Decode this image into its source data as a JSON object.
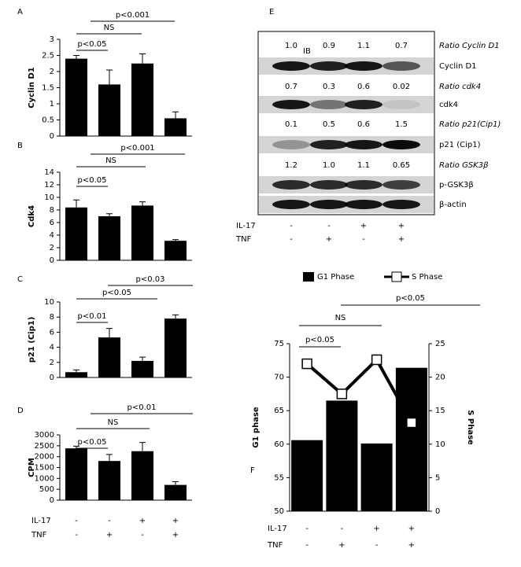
{
  "chart_data": [
    {
      "type": "bar",
      "label": "A",
      "ylabel": "Cyclin D1",
      "color": "#000000",
      "values": [
        2.4,
        1.6,
        2.25,
        0.55
      ],
      "errors": [
        0.1,
        0.45,
        0.3,
        0.2
      ],
      "ylim": [
        0,
        3
      ],
      "yticks": [
        0,
        0.5,
        1,
        1.5,
        2,
        2.5,
        3
      ],
      "annotations": [
        "p<0.05",
        "NS",
        "p<0.001"
      ]
    },
    {
      "type": "bar",
      "label": "B",
      "ylabel": "Cdk4",
      "color": "#000000",
      "values": [
        8.4,
        7,
        8.7,
        3.1
      ],
      "errors": [
        1.2,
        0.4,
        0.6,
        0.2
      ],
      "ylim": [
        0,
        14
      ],
      "yticks": [
        0,
        2,
        4,
        6,
        8,
        10,
        12,
        14
      ],
      "annotations": [
        "p<0.05",
        "NS",
        "p<0.001"
      ]
    },
    {
      "type": "bar",
      "label": "C",
      "ylabel": "p21 (Cip1)",
      "color": "#000000",
      "values": [
        0.7,
        5.3,
        2.2,
        7.8
      ],
      "errors": [
        0.3,
        1.2,
        0.5,
        0.5
      ],
      "ylim": [
        0,
        10
      ],
      "yticks": [
        0,
        2,
        4,
        6,
        8,
        10
      ],
      "annotations": [
        "p<0.01",
        "p<0.05",
        "p<0.03"
      ]
    },
    {
      "type": "bar",
      "label": "D",
      "ylabel": "CPM",
      "color": "#000000",
      "values": [
        2380,
        1800,
        2250,
        700
      ],
      "errors": [
        100,
        300,
        400,
        150
      ],
      "ylim": [
        0,
        3000
      ],
      "yticks": [
        0,
        500,
        1000,
        1500,
        2000,
        2500,
        3000
      ],
      "annotations": [
        "p<0.05",
        "NS",
        "p<0.01"
      ],
      "treatments": [
        {
          "name": "IL-17",
          "signs": [
            "-",
            "-",
            "+",
            "+"
          ]
        },
        {
          "name": "TNF",
          "signs": [
            "-",
            "+",
            "-",
            "+"
          ]
        }
      ]
    },
    {
      "type": "bar_line",
      "label": "F",
      "ylabel": "G1 phase",
      "y2label": "S Phase",
      "series": [
        {
          "name": "G1 Phase",
          "color": "#000000",
          "values": [
            60.6,
            66.5,
            60.1,
            71.4
          ]
        },
        {
          "name": "S Phase",
          "color": "#000000",
          "axis": "y2",
          "values": [
            22,
            17.5,
            22.6,
            13.2
          ]
        }
      ],
      "ylim": [
        50,
        75
      ],
      "yticks": [
        50,
        55,
        60,
        65,
        70,
        75
      ],
      "y2lim": [
        0,
        25
      ],
      "y2ticks": [
        0,
        5,
        10,
        15,
        20,
        25
      ],
      "annotations": [
        "p<0.05",
        "NS",
        "p<0.05"
      ],
      "treatments": [
        {
          "name": "IL-17",
          "signs": [
            "-",
            "-",
            "+",
            "+"
          ]
        },
        {
          "name": "TNF",
          "signs": [
            "-",
            "+",
            "-",
            "+"
          ]
        }
      ]
    }
  ],
  "blot": {
    "label": "E",
    "ib": "IB",
    "rows": [
      {
        "label": "Ratio Cyclin D1",
        "ratios": [
          "1.0",
          "0.9",
          "1.1",
          "0.7"
        ]
      },
      {
        "label": "Cyclin D1"
      },
      {
        "label": "Ratio cdk4",
        "ratios": [
          "0.7",
          "0.3",
          "0.6",
          "0.02"
        ]
      },
      {
        "label": "cdk4"
      },
      {
        "label": "Ratio p21(Cip1)",
        "ratios": [
          "0.1",
          "0.5",
          "0.6",
          "1.5"
        ]
      },
      {
        "label": "p21 (Cip1)"
      },
      {
        "label": "Ratio GSK3β",
        "ratios": [
          "1.2",
          "1.0",
          "1.1",
          "0.65"
        ]
      },
      {
        "label": "p-GSK3β"
      },
      {
        "label": "β-actin"
      }
    ],
    "treatments": [
      {
        "name": "IL-17",
        "signs": [
          "-",
          "-",
          "+",
          "+"
        ]
      },
      {
        "name": "TNF",
        "signs": [
          "-",
          "+",
          "-",
          "+"
        ]
      }
    ]
  }
}
